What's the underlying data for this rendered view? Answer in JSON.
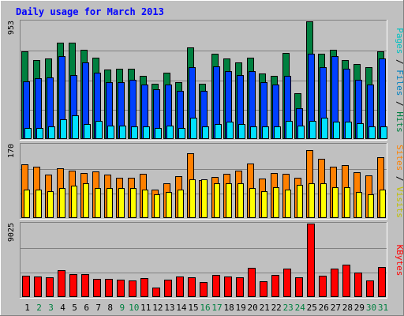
{
  "chart_data": [
    {
      "type": "bar",
      "panel": "hits-files-pages",
      "title": "Daily usage for March 2013",
      "ymax_label": "953",
      "ylim": [
        0,
        953
      ],
      "categories": [
        "1",
        "2",
        "3",
        "4",
        "5",
        "6",
        "7",
        "8",
        "9",
        "10",
        "11",
        "12",
        "13",
        "14",
        "15",
        "16",
        "17",
        "18",
        "19",
        "20",
        "21",
        "22",
        "23",
        "24",
        "25",
        "26",
        "27",
        "28",
        "29",
        "30",
        "31"
      ],
      "weekend_days": [
        "2",
        "3",
        "9",
        "10",
        "16",
        "17",
        "23",
        "24",
        "30",
        "31"
      ],
      "series": [
        {
          "name": "Hits",
          "color": "#008040",
          "values": [
            710,
            640,
            650,
            780,
            780,
            720,
            660,
            560,
            570,
            570,
            510,
            450,
            540,
            460,
            740,
            450,
            690,
            650,
            620,
            660,
            530,
            510,
            700,
            370,
            960,
            690,
            720,
            640,
            610,
            580,
            710
          ]
        },
        {
          "name": "Files",
          "color": "#0040ff",
          "values": [
            470,
            490,
            500,
            670,
            520,
            620,
            540,
            460,
            460,
            480,
            440,
            400,
            440,
            390,
            580,
            390,
            590,
            550,
            520,
            550,
            460,
            440,
            510,
            250,
            690,
            580,
            670,
            570,
            480,
            440,
            650
          ]
        },
        {
          "name": "Pages",
          "color": "#00e0ff",
          "values": [
            90,
            90,
            100,
            160,
            190,
            120,
            150,
            110,
            110,
            100,
            100,
            90,
            110,
            90,
            170,
            100,
            120,
            140,
            120,
            100,
            100,
            100,
            150,
            110,
            150,
            170,
            140,
            140,
            130,
            100,
            100
          ]
        }
      ],
      "right_label": [
        "Pages",
        " / ",
        "Files",
        " / ",
        "Hits"
      ]
    },
    {
      "type": "bar",
      "panel": "sites-visits",
      "ymax_label": "170",
      "ylim": [
        0,
        170
      ],
      "series": [
        {
          "name": "Sites",
          "color": "#ff8000",
          "values": [
            125,
            118,
            100,
            115,
            110,
            105,
            108,
            100,
            93,
            93,
            103,
            65,
            80,
            97,
            150,
            88,
            95,
            103,
            110,
            126,
            92,
            104,
            102,
            94,
            157,
            138,
            118,
            122,
            106,
            98,
            140
          ]
        },
        {
          "name": "Visits",
          "color": "#ffff00",
          "values": [
            65,
            65,
            62,
            70,
            75,
            80,
            70,
            70,
            70,
            70,
            65,
            55,
            60,
            65,
            90,
            90,
            80,
            80,
            80,
            70,
            62,
            72,
            66,
            77,
            80,
            80,
            72,
            72,
            60,
            55,
            65
          ]
        }
      ],
      "right_label": [
        "Sites",
        " / ",
        "Visits"
      ]
    },
    {
      "type": "bar",
      "panel": "kbytes",
      "ymax_label": "9025",
      "ylim": [
        0,
        9025
      ],
      "series": [
        {
          "name": "KBytes",
          "color": "#ff0000",
          "values": [
            2600,
            2500,
            2400,
            3300,
            2800,
            2800,
            2200,
            2200,
            2100,
            2000,
            2300,
            1200,
            2100,
            2500,
            2400,
            1800,
            2700,
            2500,
            2400,
            3600,
            1900,
            2700,
            3500,
            2400,
            9450,
            2600,
            3500,
            4000,
            3000,
            2000,
            3700
          ]
        }
      ],
      "right_label": [
        "KBytes"
      ]
    }
  ]
}
